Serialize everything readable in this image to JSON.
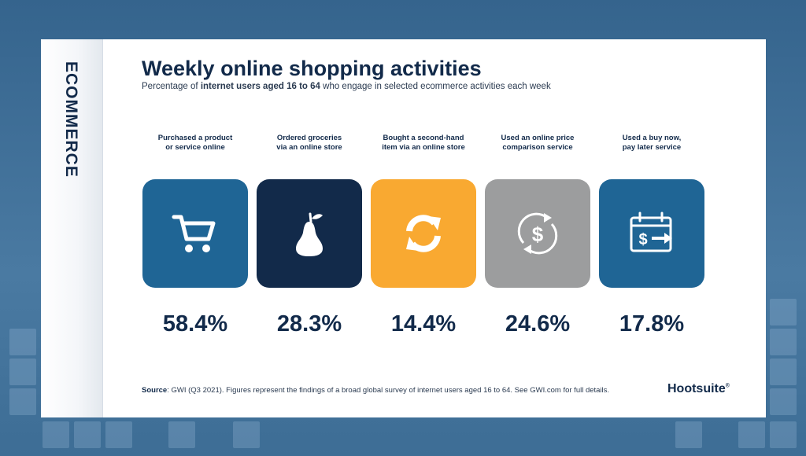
{
  "side_label": "ECOMMERCE",
  "title": "Weekly online shopping activities",
  "subtitle": {
    "prefix": "Percentage of ",
    "bold": "internet users aged 16 to 64",
    "suffix": " who engage in selected ecommerce activities each week"
  },
  "source": {
    "label": "Source",
    "text": ": GWI (Q3 2021). Figures represent the findings of a broad global survey of internet users aged 16 to 64. See GWI.com for full details."
  },
  "brand": "Hootsuite",
  "brand_mark": "®",
  "chart_data": {
    "type": "bar",
    "title": "Weekly online shopping activities",
    "categories": [
      "Purchased a product or service online",
      "Ordered groceries via an online store",
      "Bought a second-hand item via an online store",
      "Used an online price comparison service",
      "Used a buy now, pay later service"
    ],
    "values": [
      58.4,
      28.3,
      14.4,
      24.6,
      17.8
    ],
    "display_values": [
      "58.4%",
      "28.3%",
      "14.4%",
      "24.6%",
      "17.8%"
    ],
    "label_lines": [
      [
        "Purchased a product",
        "or service online"
      ],
      [
        "Ordered groceries",
        "via an online store"
      ],
      [
        "Bought a second-hand",
        "item via an online store"
      ],
      [
        "Used an online price",
        "comparison service"
      ],
      [
        "Used a buy now,",
        "pay later service"
      ]
    ],
    "icons": [
      "shopping-cart-icon",
      "pear-icon",
      "refresh-arrows-icon",
      "dollar-cycle-icon",
      "calendar-dollar-arrow-icon"
    ],
    "colors": [
      "#1f6595",
      "#122a4a",
      "#f9a931",
      "#9c9d9e",
      "#1f6595"
    ]
  }
}
